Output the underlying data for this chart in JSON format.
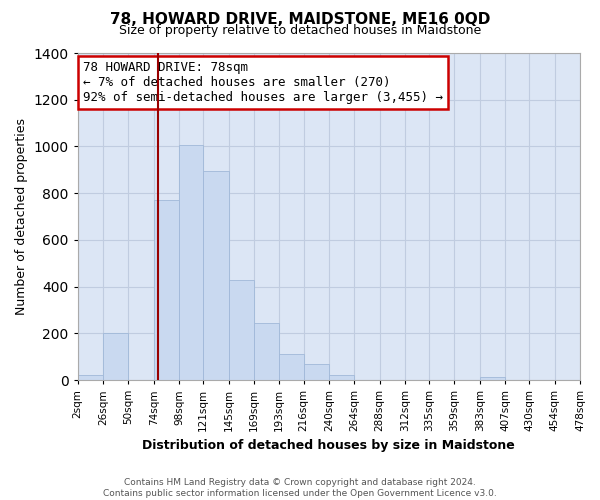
{
  "title": "78, HOWARD DRIVE, MAIDSTONE, ME16 0QD",
  "subtitle": "Size of property relative to detached houses in Maidstone",
  "xlabel": "Distribution of detached houses by size in Maidstone",
  "ylabel": "Number of detached properties",
  "bin_labels": [
    "2sqm",
    "26sqm",
    "50sqm",
    "74sqm",
    "98sqm",
    "121sqm",
    "145sqm",
    "169sqm",
    "193sqm",
    "216sqm",
    "240sqm",
    "264sqm",
    "288sqm",
    "312sqm",
    "335sqm",
    "359sqm",
    "383sqm",
    "407sqm",
    "430sqm",
    "454sqm",
    "478sqm"
  ],
  "bin_edges": [
    2,
    26,
    50,
    74,
    98,
    121,
    145,
    169,
    193,
    216,
    240,
    264,
    288,
    312,
    335,
    359,
    383,
    407,
    430,
    454,
    478
  ],
  "bar_heights": [
    20,
    200,
    0,
    770,
    1005,
    895,
    430,
    245,
    110,
    70,
    20,
    0,
    0,
    0,
    0,
    0,
    15,
    0,
    0,
    0
  ],
  "bar_color": "#c9d9f0",
  "bar_edge_color": "#a0b8d8",
  "plot_bg_color": "#dce6f5",
  "property_line_x": 78,
  "property_line_color": "#990000",
  "ylim": [
    0,
    1400
  ],
  "yticks": [
    0,
    200,
    400,
    600,
    800,
    1000,
    1200,
    1400
  ],
  "annotation_title": "78 HOWARD DRIVE: 78sqm",
  "annotation_line1": "← 7% of detached houses are smaller (270)",
  "annotation_line2": "92% of semi-detached houses are larger (3,455) →",
  "annotation_box_color": "#ffffff",
  "annotation_box_edge": "#cc0000",
  "footer_line1": "Contains HM Land Registry data © Crown copyright and database right 2024.",
  "footer_line2": "Contains public sector information licensed under the Open Government Licence v3.0.",
  "background_color": "#ffffff",
  "grid_color": "#c0cce0",
  "title_fontsize": 11,
  "subtitle_fontsize": 9,
  "ylabel_fontsize": 9,
  "xlabel_fontsize": 9,
  "tick_fontsize": 7.5,
  "ann_fontsize": 9,
  "footer_fontsize": 6.5
}
